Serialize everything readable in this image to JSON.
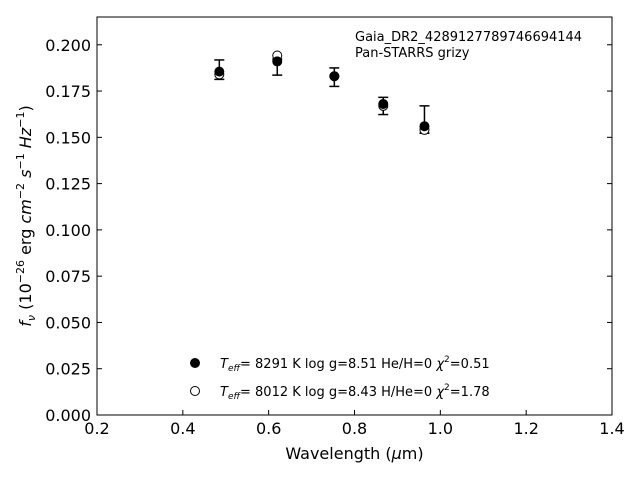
{
  "chart_data": {
    "type": "scatter",
    "xlabel": "Wavelength (μm)",
    "ylabel": "f_ν (10^-26 erg cm^-2 s^-1 Hz^-1)",
    "xlim": [
      0.2,
      1.4
    ],
    "ylim": [
      0.0,
      0.215
    ],
    "xticks": [
      "0.2",
      "0.4",
      "0.6",
      "0.8",
      "1.0",
      "1.2",
      "1.4"
    ],
    "yticks": [
      "0.000",
      "0.025",
      "0.050",
      "0.075",
      "0.100",
      "0.125",
      "0.150",
      "0.175",
      "0.200"
    ],
    "grid": false,
    "annotations": [
      "Gaia_DR2_4289127789746694144",
      "Pan-STARRS grizy"
    ],
    "observed": {
      "x": [
        0.485,
        0.62,
        0.753,
        0.867,
        0.963
      ],
      "y": [
        0.1865,
        0.1915,
        0.1826,
        0.167,
        0.1596
      ],
      "yerr_low": [
        0.1813,
        0.1836,
        0.1775,
        0.1623,
        0.1522
      ],
      "yerr_high": [
        0.1918,
        0.1923,
        0.1875,
        0.1716,
        0.167
      ]
    },
    "series": [
      {
        "name": "T_eff= 8291 K log g=8.51 He/H=0 χ²=0.51",
        "teff_label": "8291 K",
        "logg_label": "log g=8.51",
        "comp_label": "He/H=0",
        "chi_label": "=0.51",
        "marker": "filled",
        "x": [
          0.485,
          0.62,
          0.753,
          0.867,
          0.963
        ],
        "y": [
          0.1855,
          0.191,
          0.183,
          0.168,
          0.156
        ]
      },
      {
        "name": "T_eff= 8012 K log g=8.43 H/He=0 χ²=1.78",
        "teff_label": "8012 K",
        "logg_label": "log g=8.43",
        "comp_label": "H/He=0",
        "chi_label": "=1.78",
        "marker": "open",
        "x": [
          0.485,
          0.62,
          0.753,
          0.867,
          0.963
        ],
        "y": [
          0.184,
          0.1942,
          0.183,
          0.167,
          0.154
        ]
      }
    ],
    "legend_position": "lower-center",
    "colors": {
      "marker": "#000000",
      "axis": "#000000"
    }
  }
}
